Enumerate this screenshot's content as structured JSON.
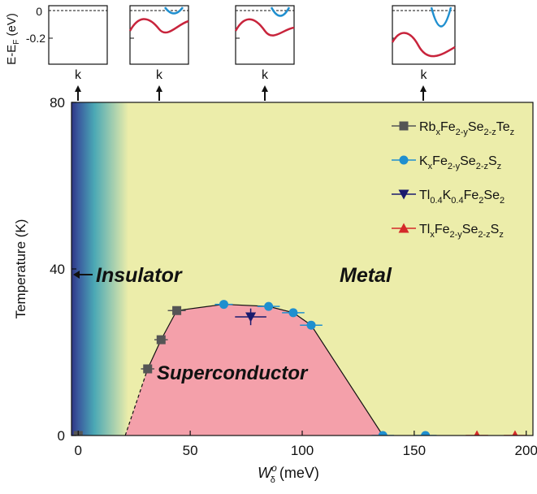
{
  "chart_data": {
    "type": "scatter",
    "xlabel_main": "W",
    "xlabel_sub": "δ",
    "xlabel_sup": "o",
    "xlabel_unit": " (meV)",
    "ylabel": "Temperature (K)",
    "xlim": [
      -3,
      203
    ],
    "ylim": [
      0,
      80
    ],
    "x_ticks": [
      0,
      50,
      100,
      150,
      200
    ],
    "y_ticks": [
      0,
      40,
      80
    ],
    "regions": {
      "insulator": "Insulator",
      "metal": "Metal",
      "superconductor": "Superconductor"
    },
    "colors": {
      "metal_bg": "#ecedaa",
      "superconductor": "#f4a0aa",
      "insulator_dark": "#2e3483",
      "insulator_mid": "#4aa8b5"
    },
    "series": [
      {
        "name_parts": [
          [
            "Rb",
            ""
          ],
          [
            "x",
            "sub"
          ],
          [
            "Fe",
            ""
          ],
          [
            "2-y",
            "sub"
          ],
          [
            "Se",
            ""
          ],
          [
            "2-z",
            "sub"
          ],
          [
            "Te",
            ""
          ],
          [
            "z",
            "sub"
          ]
        ],
        "marker": "square",
        "color": "#555555",
        "x": [
          0,
          31,
          37,
          44
        ],
        "y": [
          0,
          16,
          23,
          30
        ],
        "xerr": [
          0,
          3,
          3,
          4
        ]
      },
      {
        "name_parts": [
          [
            "K",
            ""
          ],
          [
            "x",
            "sub"
          ],
          [
            "Fe",
            ""
          ],
          [
            "2-y",
            "sub"
          ],
          [
            "Se",
            ""
          ],
          [
            "2-z",
            "sub"
          ],
          [
            "S",
            ""
          ],
          [
            "z",
            "sub"
          ]
        ],
        "marker": "circle",
        "color": "#1f8fcf",
        "x": [
          65,
          85,
          96,
          104,
          136,
          155
        ],
        "y": [
          31.5,
          31,
          29.5,
          26.5,
          0,
          0
        ],
        "xerr": [
          4,
          5,
          5,
          5,
          5,
          5
        ]
      },
      {
        "name_parts": [
          [
            "Tl",
            ""
          ],
          [
            "0.4",
            "sub"
          ],
          [
            "K",
            ""
          ],
          [
            "0.4",
            "sub"
          ],
          [
            "Fe",
            ""
          ],
          [
            "2",
            "sub"
          ],
          [
            "Se",
            ""
          ],
          [
            "2",
            "sub"
          ]
        ],
        "marker": "triangle-down",
        "color": "#1a1a6e",
        "x": [
          77
        ],
        "y": [
          28.5
        ],
        "xerr": [
          7
        ],
        "yerr": [
          2
        ]
      },
      {
        "name_parts": [
          [
            "Tl",
            ""
          ],
          [
            "x",
            "sub"
          ],
          [
            "Fe",
            ""
          ],
          [
            "2-y",
            "sub"
          ],
          [
            "Se",
            ""
          ],
          [
            "2-z",
            "sub"
          ],
          [
            "S",
            ""
          ],
          [
            "z",
            "sub"
          ]
        ],
        "marker": "triangle-up",
        "color": "#d42a2a",
        "x": [
          178,
          195
        ],
        "y": [
          0,
          0
        ],
        "xerr": [
          5,
          5
        ]
      }
    ],
    "sc_boundary": {
      "x": [
        21,
        31,
        37,
        44,
        65,
        85,
        96,
        104,
        136
      ],
      "y": [
        0,
        16,
        23,
        30,
        31.5,
        31,
        29.5,
        26.5,
        0
      ],
      "dashed_segment": [
        [
          21,
          0
        ],
        [
          31,
          16
        ]
      ]
    },
    "insets": {
      "ylabel_main": "E-E",
      "ylabel_sub": "F",
      "ylabel_unit": " (eV)",
      "yticks": [
        "0",
        "-0.2"
      ],
      "xlabel": "k",
      "panels": [
        {
          "bands": [
            "flat"
          ]
        },
        {
          "bands": [
            "red",
            "blue_high"
          ]
        },
        {
          "bands": [
            "red",
            "blue_mid"
          ]
        },
        {
          "bands": [
            "red",
            "blue_deep"
          ]
        }
      ]
    }
  }
}
